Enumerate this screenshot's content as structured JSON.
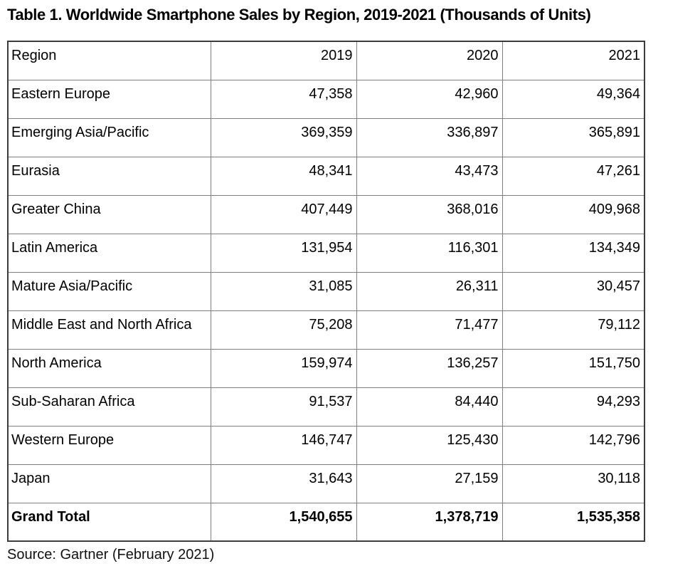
{
  "title": "Table 1. Worldwide Smartphone Sales by Region, 2019-2021 (Thousands of Units)",
  "source": "Source: Gartner (February 2021)",
  "table": {
    "columns": [
      "Region",
      "2019",
      "2020",
      "2021"
    ],
    "rows": [
      {
        "region": "Eastern Europe",
        "values": [
          "47,358",
          "42,960",
          "49,364"
        ],
        "bold": false
      },
      {
        "region": "Emerging Asia/Pacific",
        "values": [
          "369,359",
          "336,897",
          "365,891"
        ],
        "bold": false
      },
      {
        "region": "Eurasia",
        "values": [
          "48,341",
          "43,473",
          "47,261"
        ],
        "bold": false
      },
      {
        "region": "Greater China",
        "values": [
          "407,449",
          "368,016",
          "409,968"
        ],
        "bold": false
      },
      {
        "region": "Latin America",
        "values": [
          "131,954",
          "116,301",
          "134,349"
        ],
        "bold": false
      },
      {
        "region": "Mature Asia/Pacific",
        "values": [
          "31,085",
          "26,311",
          "30,457"
        ],
        "bold": false
      },
      {
        "region": "Middle East and North Africa",
        "values": [
          "75,208",
          "71,477",
          "79,112"
        ],
        "bold": false
      },
      {
        "region": "North America",
        "values": [
          "159,974",
          "136,257",
          "151,750"
        ],
        "bold": false
      },
      {
        "region": "Sub-Saharan Africa",
        "values": [
          "91,537",
          "84,440",
          "94,293"
        ],
        "bold": false
      },
      {
        "region": "Western Europe",
        "values": [
          "146,747",
          "125,430",
          "142,796"
        ],
        "bold": false
      },
      {
        "region": "Japan",
        "values": [
          "31,643",
          "27,159",
          "30,118"
        ],
        "bold": false
      },
      {
        "region": "Grand Total",
        "values": [
          "1,540,655",
          "1,378,719",
          "1,535,358"
        ],
        "bold": true
      }
    ]
  },
  "chart_data": {
    "type": "table",
    "title": "Table 1. Worldwide Smartphone Sales by Region, 2019-2021 (Thousands of Units)",
    "columns": [
      "Region",
      "2019",
      "2020",
      "2021"
    ],
    "rows": [
      [
        "Eastern Europe",
        47358,
        42960,
        49364
      ],
      [
        "Emerging Asia/Pacific",
        369359,
        336897,
        365891
      ],
      [
        "Eurasia",
        48341,
        43473,
        47261
      ],
      [
        "Greater China",
        407449,
        368016,
        409968
      ],
      [
        "Latin America",
        131954,
        116301,
        134349
      ],
      [
        "Mature Asia/Pacific",
        31085,
        26311,
        30457
      ],
      [
        "Middle East and North Africa",
        75208,
        71477,
        79112
      ],
      [
        "North America",
        159974,
        136257,
        151750
      ],
      [
        "Sub-Saharan Africa",
        91537,
        84440,
        94293
      ],
      [
        "Western Europe",
        146747,
        125430,
        142796
      ],
      [
        "Japan",
        31643,
        27159,
        30118
      ],
      [
        "Grand Total",
        1540655,
        1378719,
        1535358
      ]
    ],
    "source": "Source: Gartner (February 2021)",
    "units": "Thousands of Units"
  }
}
